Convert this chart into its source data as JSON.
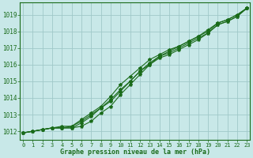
{
  "x": [
    0,
    1,
    2,
    3,
    4,
    5,
    6,
    7,
    8,
    9,
    10,
    11,
    12,
    13,
    14,
    15,
    16,
    17,
    18,
    19,
    20,
    21,
    22,
    23
  ],
  "series": [
    [
      1011.9,
      1012.0,
      1012.1,
      1012.2,
      1012.3,
      1012.3,
      1012.6,
      1013.0,
      1013.4,
      1013.9,
      1014.5,
      1015.0,
      1015.6,
      1016.0,
      1016.5,
      1016.8,
      1017.1,
      1017.4,
      1017.7,
      1018.1,
      1018.5,
      1018.7,
      1019.0,
      1019.4
    ],
    [
      1011.9,
      1012.0,
      1012.1,
      1012.2,
      1012.2,
      1012.3,
      1012.7,
      1013.1,
      1013.5,
      1014.1,
      1014.8,
      1015.3,
      1015.8,
      1016.3,
      1016.6,
      1016.9,
      1017.1,
      1017.4,
      1017.7,
      1018.0,
      1018.5,
      1018.7,
      1019.0,
      1019.4
    ],
    [
      1011.9,
      1012.0,
      1012.1,
      1012.2,
      1012.2,
      1012.2,
      1012.5,
      1012.9,
      1013.4,
      1013.8,
      1014.4,
      1015.0,
      1015.6,
      1016.1,
      1016.5,
      1016.7,
      1017.0,
      1017.3,
      1017.6,
      1017.9,
      1018.4,
      1018.6,
      1018.9,
      1019.4
    ],
    [
      1011.9,
      1012.0,
      1012.1,
      1012.2,
      1012.2,
      1012.2,
      1012.3,
      1012.6,
      1013.1,
      1013.5,
      1014.2,
      1014.8,
      1015.4,
      1016.0,
      1016.4,
      1016.6,
      1016.9,
      1017.2,
      1017.5,
      1017.9,
      1018.4,
      1018.6,
      1018.9,
      1019.4
    ]
  ],
  "line_color": "#1a6b1a",
  "marker": "*",
  "markersize": 3,
  "linewidth": 0.8,
  "bg_color": "#c8e8e8",
  "grid_color": "#a0c8c8",
  "text_color": "#1a6b1a",
  "xlabel": "Graphe pression niveau de la mer (hPa)",
  "ylim": [
    1011.5,
    1019.75
  ],
  "yticks": [
    1012,
    1013,
    1014,
    1015,
    1016,
    1017,
    1018,
    1019
  ],
  "xticks": [
    0,
    1,
    2,
    3,
    4,
    5,
    6,
    7,
    8,
    9,
    10,
    11,
    12,
    13,
    14,
    15,
    16,
    17,
    18,
    19,
    20,
    21,
    22,
    23
  ],
  "xlim": [
    -0.3,
    23.3
  ]
}
